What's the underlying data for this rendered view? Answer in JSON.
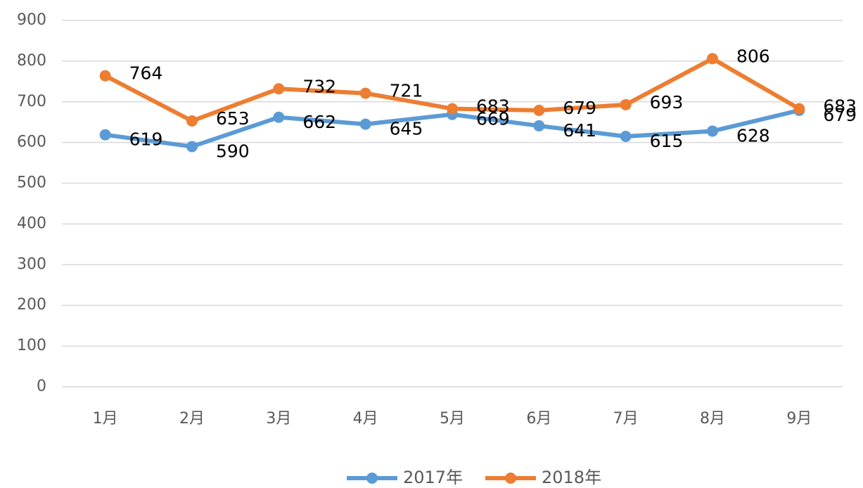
{
  "chart_data": {
    "type": "line",
    "categories": [
      "1月",
      "2月",
      "3月",
      "4月",
      "5月",
      "6月",
      "7月",
      "8月",
      "9月"
    ],
    "series": [
      {
        "name": "2017年",
        "color": "#5b9bd5",
        "values": [
          619,
          590,
          662,
          645,
          669,
          641,
          615,
          628,
          679
        ]
      },
      {
        "name": "2018年",
        "color": "#ed7d31",
        "values": [
          764,
          653,
          732,
          721,
          683,
          679,
          693,
          806,
          683
        ]
      }
    ],
    "ylim": [
      0,
      900
    ],
    "yticks": [
      0,
      100,
      200,
      300,
      400,
      500,
      600,
      700,
      800,
      900
    ],
    "grid": true,
    "legend": "bottom"
  }
}
